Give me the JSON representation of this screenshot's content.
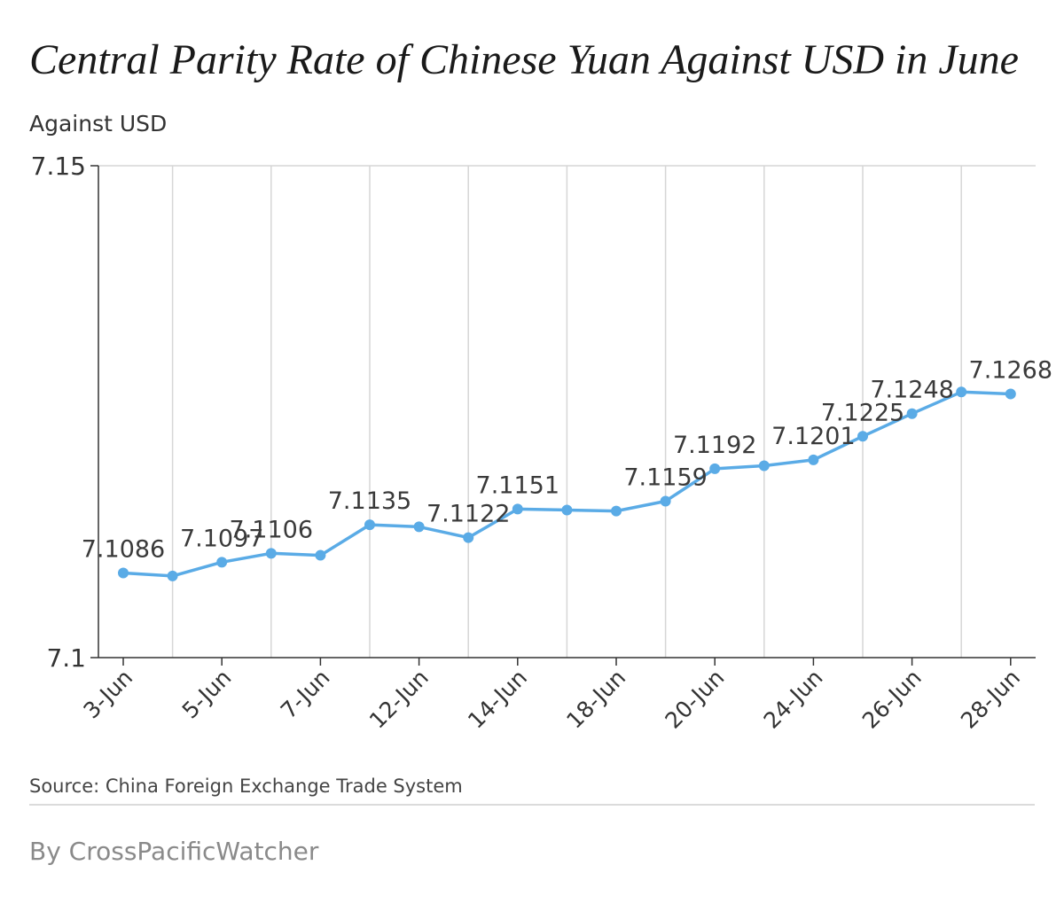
{
  "colors": {
    "line": "#5aabe6",
    "grid": "#d6d6d6",
    "axis": "#333333",
    "text": "#333333"
  },
  "footer": {
    "source": "Source:  China Foreign Exchange Trade System",
    "byline": "By CrossPacificWatcher"
  },
  "chart_data": {
    "type": "line",
    "title": "Central Parity Rate of Chinese Yuan Against USD in June",
    "ylabel": "Against USD",
    "ylim": [
      7.1,
      7.15
    ],
    "yticks": [
      "7.1",
      "7.15"
    ],
    "grid": true,
    "x_tick_labels": [
      "3-Jun",
      "5-Jun",
      "7-Jun",
      "12-Jun",
      "14-Jun",
      "18-Jun",
      "20-Jun",
      "24-Jun",
      "26-Jun",
      "28-Jun"
    ],
    "series": [
      {
        "values": [
          7.1086,
          7.1083,
          7.1097,
          7.1106,
          7.1104,
          7.1135,
          7.1133,
          7.1122,
          7.1151,
          7.115,
          7.1149,
          7.1159,
          7.1192,
          7.1195,
          7.1201,
          7.1225,
          7.1248,
          7.127,
          7.1268
        ],
        "data_labels": [
          "7.1086",
          "",
          "7.1097",
          "7.1106",
          "",
          "7.1135",
          "",
          "7.1122",
          "7.1151",
          "",
          "",
          "7.1159",
          "7.1192",
          "",
          "7.1201",
          "7.1225",
          "7.1248",
          "",
          "7.1268"
        ]
      }
    ]
  }
}
